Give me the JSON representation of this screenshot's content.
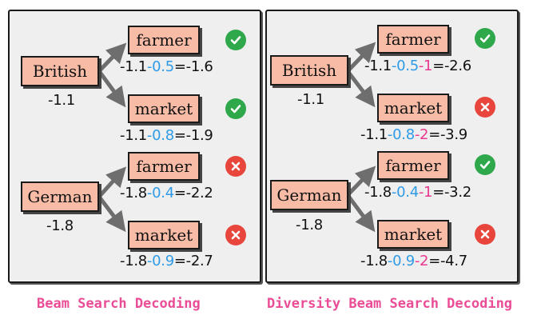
{
  "left": {
    "caption": "Beam Search Decoding",
    "sources": [
      {
        "word": "British",
        "score": "-1.1"
      },
      {
        "word": "German",
        "score": "-1.8"
      }
    ],
    "targets": [
      {
        "word": "farmer",
        "base": "-1.1",
        "delta": "-0.5",
        "total": "=-1.6",
        "status": "check-icon"
      },
      {
        "word": "market",
        "base": "-1.1",
        "delta": "-0.8",
        "total": "=-1.9",
        "status": "check-icon"
      },
      {
        "word": "farmer",
        "base": "-1.8",
        "delta": "-0.4",
        "total": "=-2.2",
        "status": "cross-icon"
      },
      {
        "word": "market",
        "base": "-1.8",
        "delta": "-0.9",
        "total": "=-2.7",
        "status": "cross-icon"
      }
    ]
  },
  "right": {
    "caption": "Diversity Beam Search Decoding",
    "sources": [
      {
        "word": "British",
        "score": "-1.1"
      },
      {
        "word": "German",
        "score": "-1.8"
      }
    ],
    "targets": [
      {
        "word": "farmer",
        "base": "-1.1",
        "delta": "-0.5",
        "penalty": "-1",
        "total": "=-2.6",
        "status": "check-icon"
      },
      {
        "word": "market",
        "base": "-1.1",
        "delta": "-0.8",
        "penalty": "-2",
        "total": "=-3.9",
        "status": "cross-icon"
      },
      {
        "word": "farmer",
        "base": "-1.8",
        "delta": "-0.4",
        "penalty": "-1",
        "total": "=-3.2",
        "status": "check-icon"
      },
      {
        "word": "market",
        "base": "-1.8",
        "delta": "-0.9",
        "penalty": "-2",
        "total": "=-4.7",
        "status": "cross-icon"
      }
    ]
  },
  "colors": {
    "node_fill": "#f8bba6",
    "model_prob": "#2f9be6",
    "diversity_penalty": "#e8388f",
    "check": "#2ea84a",
    "cross": "#e8463d",
    "caption": "#ea4c96"
  }
}
